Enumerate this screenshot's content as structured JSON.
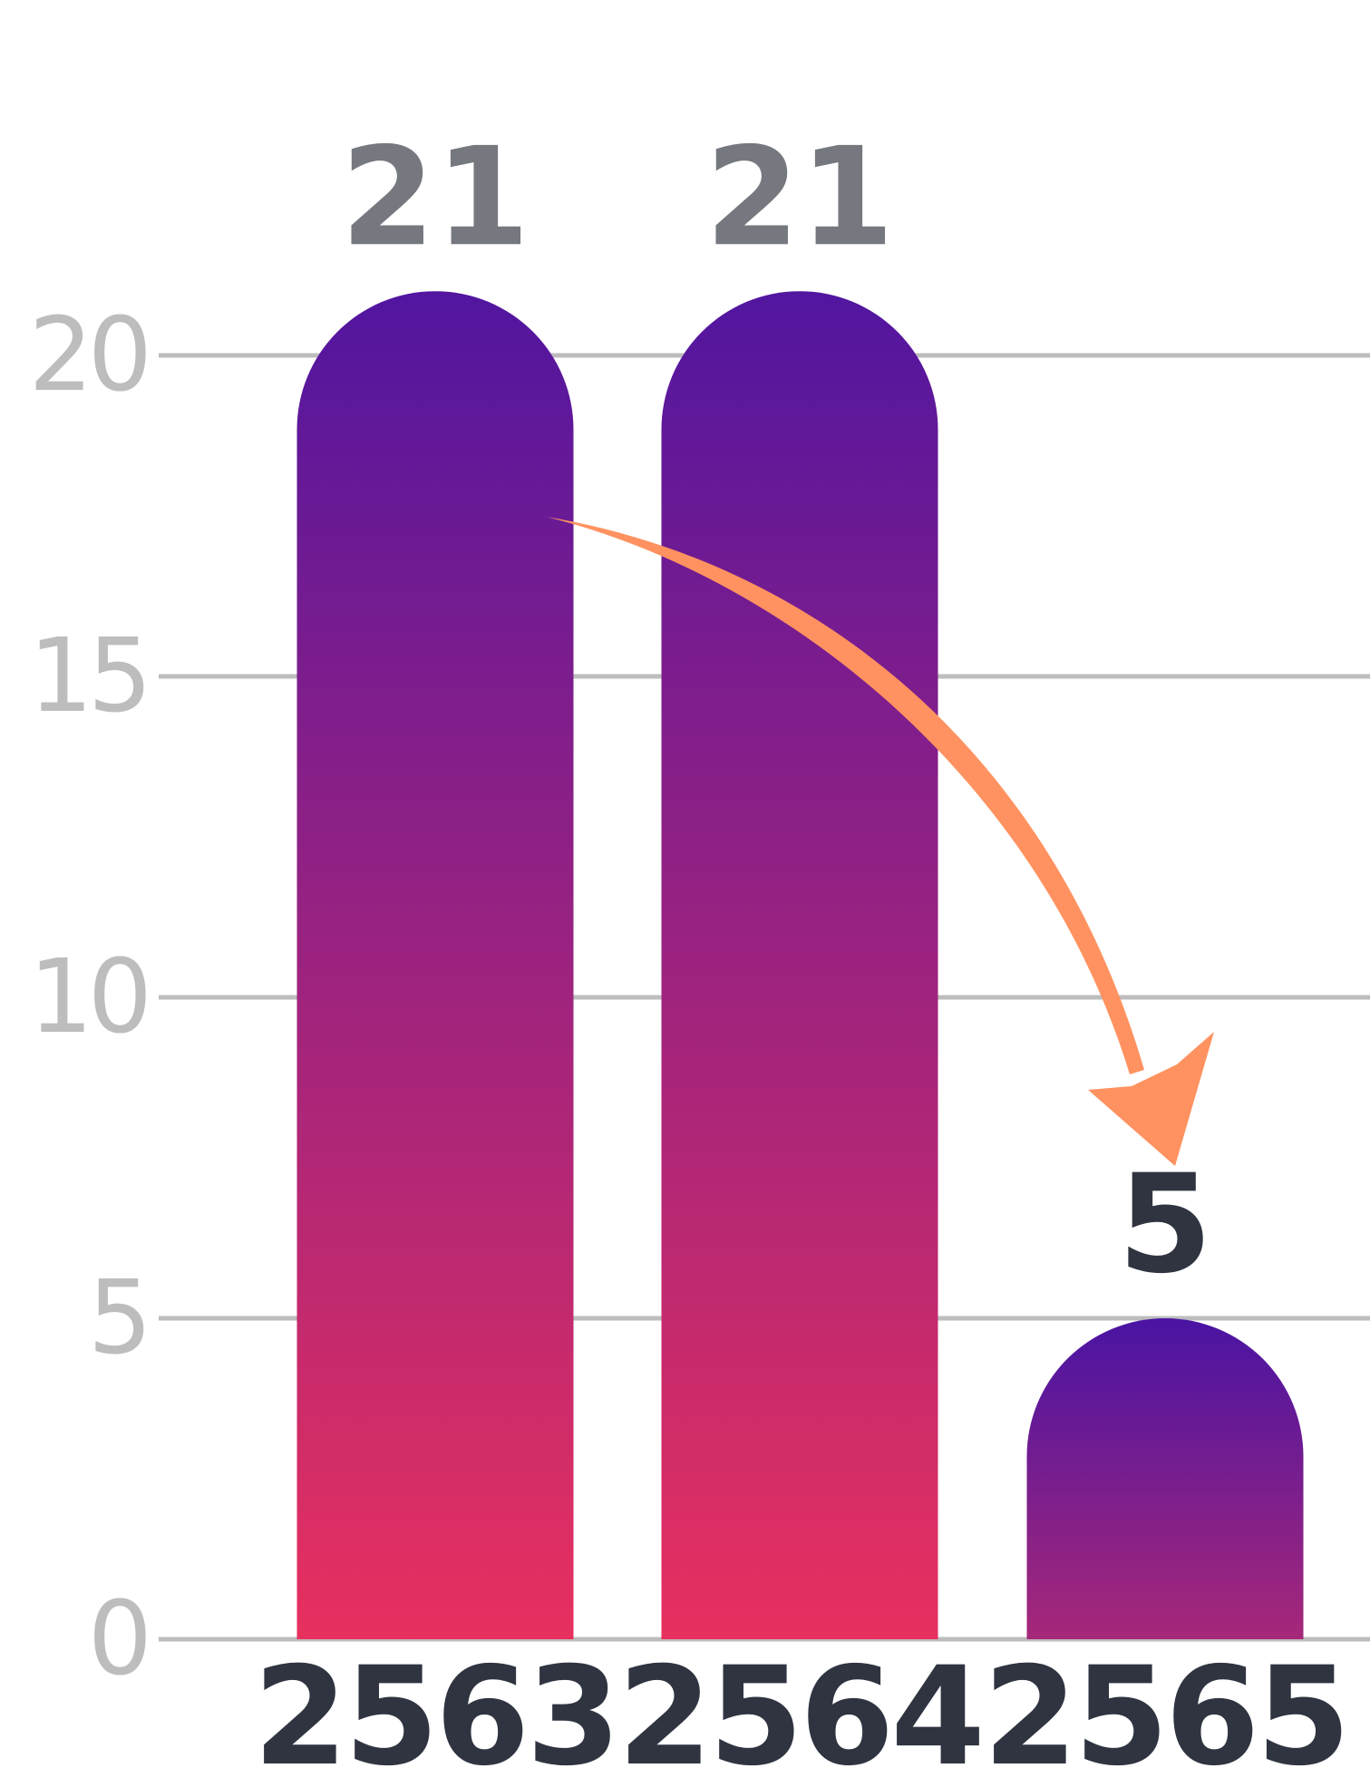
{
  "chart_data": {
    "type": "bar",
    "categories": [
      "2563",
      "2564",
      "2565"
    ],
    "values": [
      21,
      21,
      5
    ],
    "value_labels": [
      "21",
      "21",
      "5"
    ],
    "title": "",
    "xlabel": "",
    "ylabel": "",
    "ylim": [
      0,
      20
    ],
    "yticks": [
      "0",
      "5",
      "10",
      "15",
      "20"
    ],
    "grid": true,
    "colors": {
      "bar_top": "#4a14a3",
      "bar_bottom": "#e8305e",
      "value_label_high": "#75787e",
      "value_label_low": "#2f3440",
      "axis_label": "#2f3440",
      "tick_label": "#bdbdbd",
      "gridline": "#bdbdbd",
      "arrow": "#ff9260"
    },
    "annotation": {
      "type": "arrow",
      "from_category": "2563",
      "to_category": "2565",
      "meaning": "decrease"
    }
  }
}
